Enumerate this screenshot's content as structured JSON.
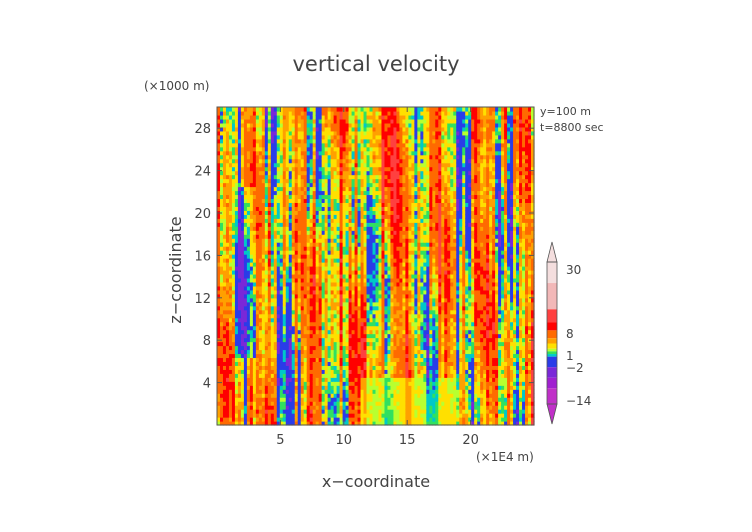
{
  "chart_data": {
    "type": "heatmap",
    "title": "vertical velocity",
    "xlabel": "x−coordinate",
    "ylabel": "z−coordinate",
    "x_unit": "(×1E4 m)",
    "y_unit": "(×1000 m)",
    "annotations": [
      "y=100 m",
      "t=8800 sec"
    ],
    "xlim": [
      0,
      25
    ],
    "ylim": [
      0,
      30
    ],
    "x_ticks": [
      5,
      10,
      15,
      20
    ],
    "y_ticks": [
      4,
      8,
      12,
      16,
      20,
      24,
      28
    ],
    "colorbar": {
      "ticks": [
        {
          "value": 30,
          "label": "30"
        },
        {
          "value": 8,
          "label": "8"
        },
        {
          "value": 1,
          "label": "1"
        },
        {
          "value": -2,
          "label": "−2"
        },
        {
          "value": -14,
          "label": "−14"
        }
      ],
      "levels": [
        {
          "min": 26,
          "max": 34,
          "color": "#f4dede"
        },
        {
          "min": 16,
          "max": 26,
          "color": "#f2b8b8"
        },
        {
          "min": 11,
          "max": 16,
          "color": "#ff4040"
        },
        {
          "min": 8,
          "max": 11,
          "color": "#ff0000"
        },
        {
          "min": 5,
          "max": 8,
          "color": "#ff6a00"
        },
        {
          "min": 3,
          "max": 5,
          "color": "#ffa000"
        },
        {
          "min": 1,
          "max": 3,
          "color": "#ffe000"
        },
        {
          "min": 0,
          "max": 1,
          "color": "#b8ff30"
        },
        {
          "min": -1,
          "max": 0,
          "color": "#30e060"
        },
        {
          "min": -2,
          "max": -1,
          "color": "#00c8c8"
        },
        {
          "min": -6,
          "max": -2,
          "color": "#2a3ce8"
        },
        {
          "min": -10,
          "max": -6,
          "color": "#7a28d8"
        },
        {
          "min": -14,
          "max": -10,
          "color": "#a020d0"
        },
        {
          "min": -20,
          "max": -14,
          "color": "#c030c8"
        }
      ]
    },
    "field_description": "Turbulent vertical velocity field with elongated vertical streaks; mostly orange/yellow (positive) with blue/purple (negative) streaks and green/cyan near-zero regions."
  }
}
